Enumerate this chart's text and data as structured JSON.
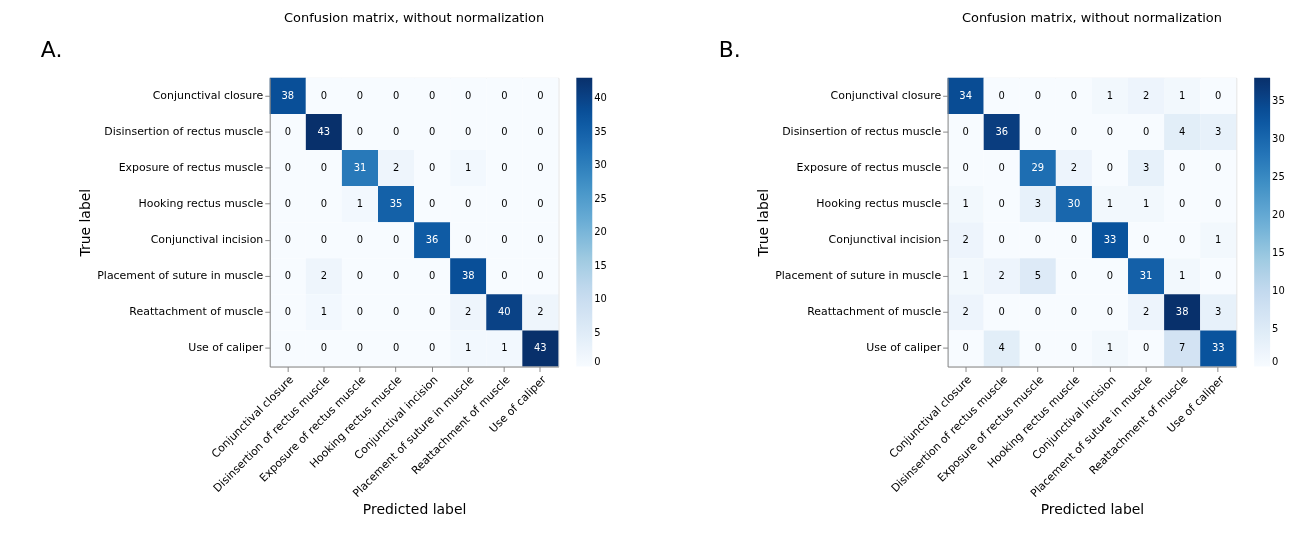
{
  "chart_data": [
    {
      "type": "heatmap",
      "title": "Confusion matrix, without normalization",
      "xlabel": "Predicted label",
      "ylabel": "True label",
      "annotations": [
        "A."
      ],
      "categories": [
        "Conjunctival closure",
        "Disinsertion of rectus muscle",
        "Exposure of rectus muscle",
        "Hooking rectus muscle",
        "Conjunctival incision",
        "Placement of suture in muscle",
        "Reattachment of muscle",
        "Use of caliper"
      ],
      "y_categories": [
        "Conjunctival closure",
        "Disinsertion of rectus muscle",
        "Exposure of rectus muscle",
        "Hooking rectus muscle",
        "Conjunctival incision",
        "Placement of suture in muscle",
        "Reattachment of muscle",
        "Use of caliper"
      ],
      "cells": [
        [
          38,
          0,
          0,
          0,
          0,
          0,
          0,
          0
        ],
        [
          0,
          43,
          0,
          0,
          0,
          0,
          0,
          0
        ],
        [
          0,
          0,
          31,
          2,
          0,
          1,
          0,
          0
        ],
        [
          0,
          0,
          1,
          35,
          0,
          0,
          0,
          0
        ],
        [
          0,
          0,
          0,
          0,
          36,
          0,
          0,
          0
        ],
        [
          0,
          2,
          0,
          0,
          0,
          38,
          0,
          0
        ],
        [
          0,
          1,
          0,
          0,
          0,
          2,
          40,
          2
        ],
        [
          0,
          0,
          0,
          0,
          0,
          1,
          1,
          43
        ]
      ],
      "clim": [
        0,
        43
      ],
      "cticks": [
        0,
        5,
        10,
        15,
        20,
        25,
        30,
        35,
        40
      ],
      "data_labels": true
    },
    {
      "type": "heatmap",
      "title": "Confusion matrix, without normalization",
      "xlabel": "Predicted label",
      "ylabel": "True label",
      "annotations": [
        "B."
      ],
      "categories": [
        "Conjunctival closure",
        "Disinsertion of rectus muscle",
        "Exposure of rectus muscle",
        "Hooking rectus muscle",
        "Conjunctival incision",
        "Placement of suture in muscle",
        "Reattachment of muscle",
        "Use of caliper"
      ],
      "y_categories": [
        "Conjunctival closure",
        "Disinsertion of rectus muscle",
        "Exposure of rectus muscle",
        "Hooking rectus muscle",
        "Conjunctival incision",
        "Placement of suture in muscle",
        "Reattachment of muscle",
        "Use of caliper"
      ],
      "cells": [
        [
          34,
          0,
          0,
          0,
          1,
          2,
          1,
          0
        ],
        [
          0,
          36,
          0,
          0,
          0,
          0,
          4,
          3
        ],
        [
          0,
          0,
          29,
          2,
          0,
          3,
          0,
          0
        ],
        [
          1,
          0,
          3,
          30,
          1,
          1,
          0,
          0
        ],
        [
          2,
          0,
          0,
          0,
          33,
          0,
          0,
          1
        ],
        [
          1,
          2,
          5,
          0,
          0,
          31,
          1,
          0
        ],
        [
          2,
          0,
          0,
          0,
          0,
          2,
          38,
          3
        ],
        [
          0,
          4,
          0,
          0,
          1,
          0,
          7,
          33
        ]
      ],
      "clim": [
        0,
        38
      ],
      "cticks": [
        0,
        5,
        10,
        15,
        20,
        25,
        30,
        35
      ],
      "data_labels": true
    }
  ]
}
